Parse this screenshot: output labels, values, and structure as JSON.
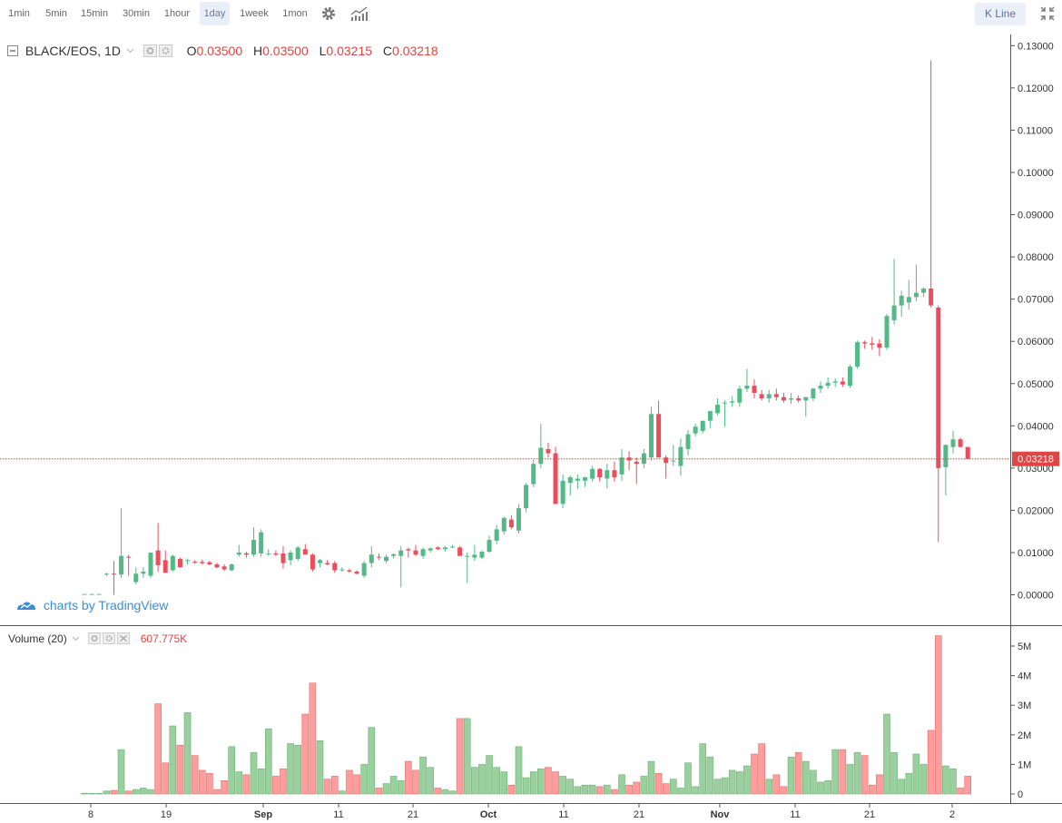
{
  "toolbar": {
    "intervals": [
      "1min",
      "5min",
      "15min",
      "30min",
      "1hour",
      "1day",
      "1week",
      "1mon"
    ],
    "selected": "1day",
    "kline_label": "K Line",
    "icons": [
      "settings-icon",
      "indicators-icon",
      "fullscreen-icon"
    ]
  },
  "legend": {
    "symbol": "BLACK/EOS, 1D",
    "o_label": "O",
    "o_value": "0.03500",
    "h_label": "H",
    "h_value": "0.03500",
    "l_label": "L",
    "l_value": "0.03215",
    "c_label": "C",
    "c_value": "0.03218"
  },
  "volume_legend": {
    "label": "Volume (20)",
    "value": "607.775K"
  },
  "watermark": "charts by TradingView",
  "colors": {
    "up": "#53b987",
    "down": "#eb4d5c",
    "vol_up": "#9ad09e",
    "vol_down": "#ff9c9c",
    "accent": "#e04545"
  },
  "chart_data": {
    "type": "candlestick",
    "price_axis": {
      "min": 0,
      "max": 0.13,
      "ticks": [
        "0.00000",
        "0.01000",
        "0.02000",
        "0.03000",
        "0.04000",
        "0.05000",
        "0.06000",
        "0.07000",
        "0.08000",
        "0.09000",
        "0.10000",
        "0.11000",
        "0.12000",
        "0.13000"
      ]
    },
    "last_price": "0.03218",
    "volume_axis": {
      "min": 0,
      "max": 5.5,
      "ticks": [
        "0",
        "1M",
        "2M",
        "3M",
        "4M",
        "5M"
      ]
    },
    "x_labels": [
      "8",
      "19",
      "Sep",
      "11",
      "21",
      "Oct",
      "11",
      "21",
      "Nov",
      "11",
      "21",
      "2"
    ],
    "candles": [
      {
        "o": 0.0002,
        "h": 0.0002,
        "l": 0.0002,
        "c": 0.0002,
        "v": 0.02
      },
      {
        "o": 0.0002,
        "h": 0.0002,
        "l": 0.0002,
        "c": 0.0002,
        "v": 0.02
      },
      {
        "o": 0.0002,
        "h": 0.0002,
        "l": 0.0002,
        "c": 0.0002,
        "v": 0.02
      },
      {
        "o": 0.0048,
        "h": 0.0052,
        "l": 0.0044,
        "c": 0.005,
        "v": 0.1
      },
      {
        "o": 0.005,
        "h": 0.008,
        "l": 0.0,
        "c": 0.0048,
        "v": 0.12
      },
      {
        "o": 0.0048,
        "h": 0.0205,
        "l": 0.004,
        "c": 0.0092,
        "v": 1.5
      },
      {
        "o": 0.009,
        "h": 0.0095,
        "l": 0.0045,
        "c": 0.0088,
        "v": 0.1
      },
      {
        "o": 0.003,
        "h": 0.0065,
        "l": 0.0025,
        "c": 0.005,
        "v": 0.15
      },
      {
        "o": 0.005,
        "h": 0.0065,
        "l": 0.004,
        "c": 0.0055,
        "v": 0.2
      },
      {
        "o": 0.0045,
        "h": 0.01,
        "l": 0.004,
        "c": 0.01,
        "v": 0.15
      },
      {
        "o": 0.0105,
        "h": 0.017,
        "l": 0.0055,
        "c": 0.007,
        "v": 3.05
      },
      {
        "o": 0.0082,
        "h": 0.0105,
        "l": 0.0052,
        "c": 0.0052,
        "v": 1.05
      },
      {
        "o": 0.0058,
        "h": 0.0095,
        "l": 0.0055,
        "c": 0.0092,
        "v": 2.3
      },
      {
        "o": 0.0085,
        "h": 0.0088,
        "l": 0.0065,
        "c": 0.0065,
        "v": 1.65
      },
      {
        "o": 0.008,
        "h": 0.0086,
        "l": 0.0072,
        "c": 0.0082,
        "v": 2.75
      },
      {
        "o": 0.0078,
        "h": 0.0082,
        "l": 0.0074,
        "c": 0.0076,
        "v": 1.3
      },
      {
        "o": 0.0078,
        "h": 0.0083,
        "l": 0.0072,
        "c": 0.0075,
        "v": 0.8
      },
      {
        "o": 0.0077,
        "h": 0.008,
        "l": 0.007,
        "c": 0.0072,
        "v": 0.7
      },
      {
        "o": 0.0072,
        "h": 0.0076,
        "l": 0.0063,
        "c": 0.0065,
        "v": 0.15
      },
      {
        "o": 0.0067,
        "h": 0.0072,
        "l": 0.0056,
        "c": 0.006,
        "v": 0.45
      },
      {
        "o": 0.0058,
        "h": 0.0074,
        "l": 0.0056,
        "c": 0.0072,
        "v": 1.6
      },
      {
        "o": 0.0095,
        "h": 0.0118,
        "l": 0.009,
        "c": 0.01,
        "v": 0.75
      },
      {
        "o": 0.0098,
        "h": 0.0102,
        "l": 0.0088,
        "c": 0.0095,
        "v": 0.65
      },
      {
        "o": 0.0095,
        "h": 0.016,
        "l": 0.009,
        "c": 0.013,
        "v": 1.4
      },
      {
        "o": 0.0098,
        "h": 0.0155,
        "l": 0.009,
        "c": 0.0148,
        "v": 0.85
      },
      {
        "o": 0.0098,
        "h": 0.0108,
        "l": 0.0092,
        "c": 0.0098,
        "v": 2.2
      },
      {
        "o": 0.0098,
        "h": 0.0105,
        "l": 0.0092,
        "c": 0.0095,
        "v": 0.6
      },
      {
        "o": 0.0098,
        "h": 0.0115,
        "l": 0.0062,
        "c": 0.0075,
        "v": 0.85
      },
      {
        "o": 0.0082,
        "h": 0.0105,
        "l": 0.007,
        "c": 0.01,
        "v": 1.7
      },
      {
        "o": 0.0085,
        "h": 0.0115,
        "l": 0.008,
        "c": 0.0112,
        "v": 1.65
      },
      {
        "o": 0.0108,
        "h": 0.012,
        "l": 0.0095,
        "c": 0.0095,
        "v": 2.7
      },
      {
        "o": 0.0095,
        "h": 0.0098,
        "l": 0.0055,
        "c": 0.006,
        "v": 3.75
      },
      {
        "o": 0.0075,
        "h": 0.0085,
        "l": 0.0065,
        "c": 0.0082,
        "v": 1.8
      },
      {
        "o": 0.0075,
        "h": 0.0082,
        "l": 0.007,
        "c": 0.0072,
        "v": 0.5
      },
      {
        "o": 0.0075,
        "h": 0.008,
        "l": 0.0052,
        "c": 0.0058,
        "v": 0.6
      },
      {
        "o": 0.006,
        "h": 0.0065,
        "l": 0.0055,
        "c": 0.006,
        "v": 0.1
      },
      {
        "o": 0.0058,
        "h": 0.0062,
        "l": 0.0052,
        "c": 0.0055,
        "v": 0.8
      },
      {
        "o": 0.0055,
        "h": 0.0058,
        "l": 0.0048,
        "c": 0.005,
        "v": 0.65
      },
      {
        "o": 0.0045,
        "h": 0.008,
        "l": 0.004,
        "c": 0.0075,
        "v": 1.0
      },
      {
        "o": 0.0075,
        "h": 0.0115,
        "l": 0.0065,
        "c": 0.0095,
        "v": 2.25
      },
      {
        "o": 0.009,
        "h": 0.0098,
        "l": 0.0082,
        "c": 0.0088,
        "v": 0.2
      },
      {
        "o": 0.008,
        "h": 0.0095,
        "l": 0.0075,
        "c": 0.009,
        "v": 0.35
      },
      {
        "o": 0.0092,
        "h": 0.0098,
        "l": 0.0086,
        "c": 0.0096,
        "v": 0.6
      },
      {
        "o": 0.0092,
        "h": 0.0115,
        "l": 0.0018,
        "c": 0.0105,
        "v": 0.45
      },
      {
        "o": 0.0108,
        "h": 0.0112,
        "l": 0.0088,
        "c": 0.0105,
        "v": 1.1
      },
      {
        "o": 0.0105,
        "h": 0.0118,
        "l": 0.0092,
        "c": 0.0095,
        "v": 0.8
      },
      {
        "o": 0.0092,
        "h": 0.0112,
        "l": 0.0085,
        "c": 0.0108,
        "v": 1.25
      },
      {
        "o": 0.0105,
        "h": 0.0112,
        "l": 0.01,
        "c": 0.011,
        "v": 0.9
      },
      {
        "o": 0.0112,
        "h": 0.0115,
        "l": 0.0106,
        "c": 0.0108,
        "v": 0.2
      },
      {
        "o": 0.0108,
        "h": 0.0115,
        "l": 0.0102,
        "c": 0.0112,
        "v": 0.15
      },
      {
        "o": 0.0112,
        "h": 0.0118,
        "l": 0.011,
        "c": 0.0114,
        "v": 0.1
      },
      {
        "o": 0.0112,
        "h": 0.0115,
        "l": 0.0092,
        "c": 0.0092,
        "v": 2.55
      },
      {
        "o": 0.009,
        "h": 0.01,
        "l": 0.0028,
        "c": 0.0092,
        "v": 2.55
      },
      {
        "o": 0.0088,
        "h": 0.0118,
        "l": 0.008,
        "c": 0.0095,
        "v": 0.9
      },
      {
        "o": 0.0088,
        "h": 0.0105,
        "l": 0.0085,
        "c": 0.0102,
        "v": 1.0
      },
      {
        "o": 0.0102,
        "h": 0.014,
        "l": 0.01,
        "c": 0.013,
        "v": 1.3
      },
      {
        "o": 0.0128,
        "h": 0.0165,
        "l": 0.012,
        "c": 0.0155,
        "v": 0.9
      },
      {
        "o": 0.015,
        "h": 0.0185,
        "l": 0.0142,
        "c": 0.0182,
        "v": 0.75
      },
      {
        "o": 0.0178,
        "h": 0.0188,
        "l": 0.0155,
        "c": 0.016,
        "v": 0.3
      },
      {
        "o": 0.0152,
        "h": 0.0215,
        "l": 0.0145,
        "c": 0.0205,
        "v": 1.6
      },
      {
        "o": 0.0205,
        "h": 0.0265,
        "l": 0.0195,
        "c": 0.026,
        "v": 0.55
      },
      {
        "o": 0.0262,
        "h": 0.032,
        "l": 0.0255,
        "c": 0.031,
        "v": 0.75
      },
      {
        "o": 0.031,
        "h": 0.0405,
        "l": 0.03,
        "c": 0.0348,
        "v": 0.85
      },
      {
        "o": 0.0345,
        "h": 0.036,
        "l": 0.0325,
        "c": 0.0335,
        "v": 0.9
      },
      {
        "o": 0.0335,
        "h": 0.035,
        "l": 0.0215,
        "c": 0.0215,
        "v": 0.75
      },
      {
        "o": 0.0215,
        "h": 0.0285,
        "l": 0.0205,
        "c": 0.027,
        "v": 0.6
      },
      {
        "o": 0.0265,
        "h": 0.0282,
        "l": 0.0235,
        "c": 0.0278,
        "v": 0.5
      },
      {
        "o": 0.027,
        "h": 0.0285,
        "l": 0.025,
        "c": 0.0275,
        "v": 0.25
      },
      {
        "o": 0.027,
        "h": 0.028,
        "l": 0.0255,
        "c": 0.0278,
        "v": 0.3
      },
      {
        "o": 0.0275,
        "h": 0.0305,
        "l": 0.0268,
        "c": 0.0298,
        "v": 0.3
      },
      {
        "o": 0.0298,
        "h": 0.03,
        "l": 0.0268,
        "c": 0.0278,
        "v": 0.25
      },
      {
        "o": 0.0275,
        "h": 0.031,
        "l": 0.0252,
        "c": 0.0295,
        "v": 0.3
      },
      {
        "o": 0.0295,
        "h": 0.0315,
        "l": 0.0268,
        "c": 0.0278,
        "v": 0.15
      },
      {
        "o": 0.0285,
        "h": 0.0345,
        "l": 0.027,
        "c": 0.0325,
        "v": 0.65
      },
      {
        "o": 0.0325,
        "h": 0.034,
        "l": 0.0295,
        "c": 0.0318,
        "v": 0.3
      },
      {
        "o": 0.0315,
        "h": 0.0325,
        "l": 0.0262,
        "c": 0.031,
        "v": 0.4
      },
      {
        "o": 0.031,
        "h": 0.0345,
        "l": 0.03,
        "c": 0.0335,
        "v": 0.6
      },
      {
        "o": 0.0325,
        "h": 0.0445,
        "l": 0.0318,
        "c": 0.0428,
        "v": 1.1
      },
      {
        "o": 0.0428,
        "h": 0.046,
        "l": 0.0325,
        "c": 0.0325,
        "v": 0.7
      },
      {
        "o": 0.0325,
        "h": 0.033,
        "l": 0.0275,
        "c": 0.0312,
        "v": 0.35
      },
      {
        "o": 0.0318,
        "h": 0.0355,
        "l": 0.0305,
        "c": 0.0318,
        "v": 0.5
      },
      {
        "o": 0.0305,
        "h": 0.037,
        "l": 0.0282,
        "c": 0.035,
        "v": 0.2
      },
      {
        "o": 0.0345,
        "h": 0.039,
        "l": 0.033,
        "c": 0.038,
        "v": 1.05
      },
      {
        "o": 0.0382,
        "h": 0.0405,
        "l": 0.0375,
        "c": 0.0398,
        "v": 0.25
      },
      {
        "o": 0.0388,
        "h": 0.0412,
        "l": 0.0382,
        "c": 0.0412,
        "v": 1.7
      },
      {
        "o": 0.0412,
        "h": 0.0435,
        "l": 0.0395,
        "c": 0.0435,
        "v": 1.25
      },
      {
        "o": 0.043,
        "h": 0.0465,
        "l": 0.0425,
        "c": 0.045,
        "v": 0.5
      },
      {
        "o": 0.0455,
        "h": 0.046,
        "l": 0.0398,
        "c": 0.0455,
        "v": 0.55
      },
      {
        "o": 0.0455,
        "h": 0.047,
        "l": 0.0445,
        "c": 0.0458,
        "v": 0.8
      },
      {
        "o": 0.0455,
        "h": 0.0495,
        "l": 0.0445,
        "c": 0.0488,
        "v": 0.75
      },
      {
        "o": 0.0488,
        "h": 0.0535,
        "l": 0.048,
        "c": 0.0495,
        "v": 0.95
      },
      {
        "o": 0.0495,
        "h": 0.051,
        "l": 0.0465,
        "c": 0.0478,
        "v": 1.35
      },
      {
        "o": 0.0475,
        "h": 0.0485,
        "l": 0.046,
        "c": 0.0465,
        "v": 1.7
      },
      {
        "o": 0.0465,
        "h": 0.0485,
        "l": 0.0455,
        "c": 0.0475,
        "v": 0.5
      },
      {
        "o": 0.0475,
        "h": 0.0488,
        "l": 0.046,
        "c": 0.0468,
        "v": 0.65
      },
      {
        "o": 0.0468,
        "h": 0.0478,
        "l": 0.0455,
        "c": 0.046,
        "v": 0.25
      },
      {
        "o": 0.0462,
        "h": 0.0478,
        "l": 0.0452,
        "c": 0.0465,
        "v": 1.25
      },
      {
        "o": 0.0465,
        "h": 0.0472,
        "l": 0.0455,
        "c": 0.046,
        "v": 1.4
      },
      {
        "o": 0.046,
        "h": 0.0468,
        "l": 0.0422,
        "c": 0.0468,
        "v": 1.1
      },
      {
        "o": 0.0465,
        "h": 0.049,
        "l": 0.0458,
        "c": 0.0488,
        "v": 0.8
      },
      {
        "o": 0.0488,
        "h": 0.0505,
        "l": 0.0478,
        "c": 0.0495,
        "v": 0.4
      },
      {
        "o": 0.0495,
        "h": 0.0515,
        "l": 0.0488,
        "c": 0.0502,
        "v": 0.45
      },
      {
        "o": 0.0502,
        "h": 0.0512,
        "l": 0.0492,
        "c": 0.0505,
        "v": 1.5
      },
      {
        "o": 0.0505,
        "h": 0.0515,
        "l": 0.0492,
        "c": 0.0498,
        "v": 1.5
      },
      {
        "o": 0.0495,
        "h": 0.0545,
        "l": 0.049,
        "c": 0.054,
        "v": 1.0
      },
      {
        "o": 0.054,
        "h": 0.0602,
        "l": 0.0535,
        "c": 0.0598,
        "v": 1.4
      },
      {
        "o": 0.0598,
        "h": 0.0602,
        "l": 0.0582,
        "c": 0.0595,
        "v": 1.3
      },
      {
        "o": 0.0595,
        "h": 0.061,
        "l": 0.058,
        "c": 0.0592,
        "v": 0.3
      },
      {
        "o": 0.0595,
        "h": 0.0605,
        "l": 0.0565,
        "c": 0.0585,
        "v": 0.65
      },
      {
        "o": 0.0585,
        "h": 0.0665,
        "l": 0.058,
        "c": 0.066,
        "v": 2.7
      },
      {
        "o": 0.065,
        "h": 0.0795,
        "l": 0.064,
        "c": 0.0685,
        "v": 1.4
      },
      {
        "o": 0.0685,
        "h": 0.072,
        "l": 0.0658,
        "c": 0.0708,
        "v": 0.5
      },
      {
        "o": 0.0692,
        "h": 0.0745,
        "l": 0.0675,
        "c": 0.0705,
        "v": 0.7
      },
      {
        "o": 0.0705,
        "h": 0.0782,
        "l": 0.0695,
        "c": 0.0715,
        "v": 1.35
      },
      {
        "o": 0.0715,
        "h": 0.0728,
        "l": 0.0705,
        "c": 0.0725,
        "v": 1.0
      },
      {
        "o": 0.0725,
        "h": 0.1265,
        "l": 0.068,
        "c": 0.0685,
        "v": 2.15
      },
      {
        "o": 0.068,
        "h": 0.0685,
        "l": 0.0125,
        "c": 0.03,
        "v": 5.35
      },
      {
        "o": 0.0302,
        "h": 0.0355,
        "l": 0.0235,
        "c": 0.0355,
        "v": 0.95
      },
      {
        "o": 0.035,
        "h": 0.0388,
        "l": 0.0335,
        "c": 0.0368,
        "v": 0.85
      },
      {
        "o": 0.0368,
        "h": 0.0372,
        "l": 0.0348,
        "c": 0.035,
        "v": 0.2
      },
      {
        "o": 0.035,
        "h": 0.035,
        "l": 0.03215,
        "c": 0.03218,
        "v": 0.6
      }
    ]
  }
}
